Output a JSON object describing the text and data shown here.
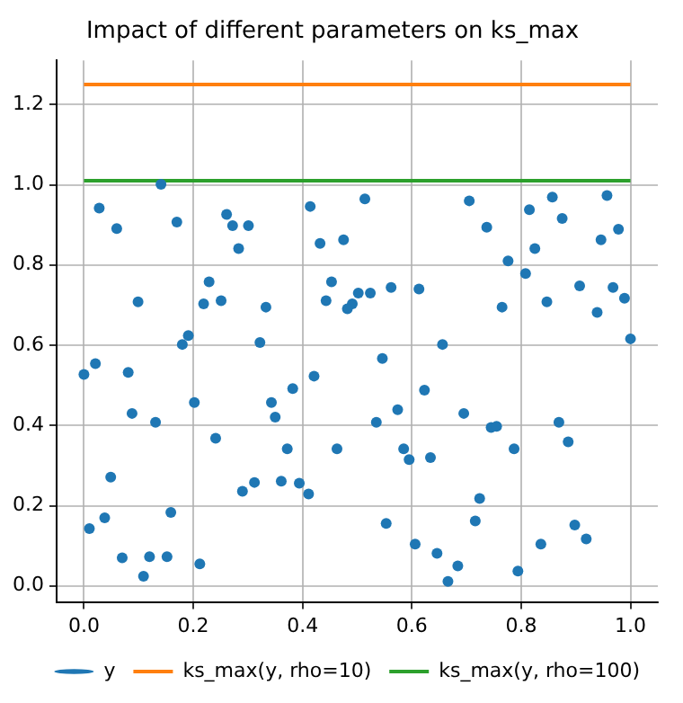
{
  "chart_data": {
    "type": "scatter",
    "title": "Impact of different parameters on ks_max",
    "xlim": [
      -0.05,
      1.05
    ],
    "ylim": [
      -0.04,
      1.31
    ],
    "xticks": [
      {
        "value": 0,
        "label": "0.0"
      },
      {
        "value": 0.2,
        "label": "0.2"
      },
      {
        "value": 0.4,
        "label": "0.4"
      },
      {
        "value": 0.6,
        "label": "0.6"
      },
      {
        "value": 0.8,
        "label": "0.8"
      },
      {
        "value": 1,
        "label": "1.0"
      }
    ],
    "yticks": [
      {
        "value": 0,
        "label": "0.0"
      },
      {
        "value": 0.2,
        "label": "0.2"
      },
      {
        "value": 0.4,
        "label": "0.4"
      },
      {
        "value": 0.6,
        "label": "0.6"
      },
      {
        "value": 0.8,
        "label": "0.8"
      },
      {
        "value": 1,
        "label": "1.0"
      },
      {
        "value": 1.2,
        "label": "1.2"
      }
    ],
    "grid": true,
    "legend": "bottom right",
    "series": [
      {
        "name": "y",
        "color": "#1f77b4",
        "marker": "circle",
        "x": [
          0.028,
          0.06,
          0.141,
          0.17,
          0.261,
          0.272,
          0.301,
          0.283,
          0.414,
          0.432,
          0.475,
          0.229,
          0.099,
          0.219,
          0.251,
          0.333,
          0.453,
          0.443,
          0.502,
          0.491,
          0.482,
          0.191,
          0.18,
          0.322,
          0.0,
          0.021,
          0.081,
          0.382,
          0.421,
          0.514,
          0.705,
          0.737,
          0.815,
          0.857,
          0.875,
          0.957,
          0.978,
          0.946,
          0.825,
          0.776,
          0.808,
          0.907,
          0.968,
          0.989,
          0.939,
          0.847,
          0.765,
          0.613,
          0.562,
          0.524,
          0.656,
          0.546,
          1.0,
          0.623,
          0.088,
          0.202,
          0.131,
          0.343,
          0.35,
          0.241,
          0.372,
          0.463,
          0.049,
          0.29,
          0.312,
          0.411,
          0.361,
          0.394,
          0.01,
          0.038,
          0.159,
          0.07,
          0.12,
          0.152,
          0.109,
          0.212,
          0.535,
          0.574,
          0.695,
          0.745,
          0.755,
          0.869,
          0.886,
          0.787,
          0.585,
          0.595,
          0.634,
          0.724,
          0.553,
          0.716,
          0.898,
          0.606,
          0.646,
          0.836,
          0.919,
          0.666,
          0.684,
          0.794
        ],
        "values": [
          0.942,
          0.891,
          1.001,
          0.907,
          0.926,
          0.898,
          0.898,
          0.841,
          0.946,
          0.854,
          0.863,
          0.758,
          0.708,
          0.703,
          0.711,
          0.695,
          0.758,
          0.711,
          0.73,
          0.703,
          0.691,
          0.624,
          0.602,
          0.607,
          0.527,
          0.554,
          0.532,
          0.492,
          0.523,
          0.965,
          0.96,
          0.894,
          0.938,
          0.969,
          0.916,
          0.973,
          0.889,
          0.863,
          0.841,
          0.81,
          0.779,
          0.748,
          0.744,
          0.717,
          0.682,
          0.708,
          0.695,
          0.74,
          0.744,
          0.73,
          0.602,
          0.567,
          0.616,
          0.488,
          0.43,
          0.457,
          0.408,
          0.457,
          0.421,
          0.368,
          0.342,
          0.342,
          0.271,
          0.236,
          0.258,
          0.229,
          0.261,
          0.256,
          0.143,
          0.17,
          0.183,
          0.07,
          0.073,
          0.073,
          0.024,
          0.055,
          0.408,
          0.439,
          0.43,
          0.395,
          0.398,
          0.408,
          0.359,
          0.342,
          0.342,
          0.315,
          0.32,
          0.218,
          0.156,
          0.162,
          0.152,
          0.104,
          0.081,
          0.104,
          0.117,
          0.011,
          0.05,
          0.037
        ]
      },
      {
        "name": "ks_max(y, rho=10)",
        "type": "line",
        "color": "#ff7f0e",
        "x": [
          0,
          1
        ],
        "values": [
          1.25,
          1.25
        ]
      },
      {
        "name": "ks_max(y, rho=100)",
        "type": "line",
        "color": "#2ca02c",
        "x": [
          0,
          1
        ],
        "values": [
          1.01,
          1.01
        ]
      }
    ]
  }
}
